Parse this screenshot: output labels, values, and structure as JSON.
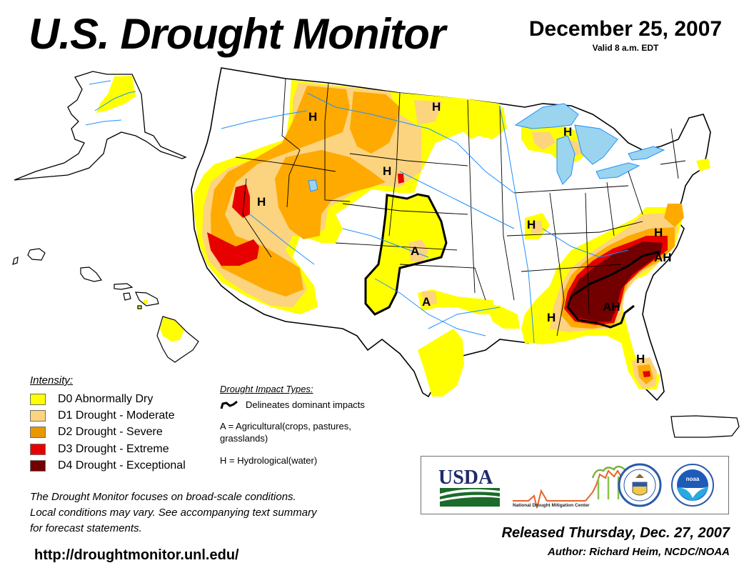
{
  "header": {
    "title": "U.S. Drought Monitor",
    "date": "December 25, 2007",
    "valid": "Valid 8 a.m. EDT"
  },
  "legend": {
    "intensity_heading": "Intensity:",
    "items": [
      {
        "code": "D0",
        "label": "D0 Abnormally Dry",
        "color": "#ffff00"
      },
      {
        "code": "D1",
        "label": "D1 Drought - Moderate",
        "color": "#fcd37f"
      },
      {
        "code": "D2",
        "label": "D2 Drought - Severe",
        "color": "#ffaa00"
      },
      {
        "code": "D3",
        "label": "D3 Drought - Extreme",
        "color": "#e60000"
      },
      {
        "code": "D4",
        "label": "D4 Drought - Exceptional",
        "color": "#730000"
      }
    ]
  },
  "impacts": {
    "heading": "Drought Impact Types:",
    "line_label": "Delineates dominant impacts",
    "agricultural": "A = Agricultural(crops, pastures,",
    "agricultural_cont": "grasslands)",
    "hydrological": "H = Hydrological(water)"
  },
  "map_labels": {
    "H": "H",
    "A": "A",
    "AH": "AH"
  },
  "note": {
    "line1": "The Drought Monitor focuses on broad-scale conditions.",
    "line2": "Local conditions may vary. See accompanying text summary",
    "line3": "for forecast statements."
  },
  "url": "http://droughtmonitor.unl.edu/",
  "logos": {
    "usda": "USDA",
    "ndmc": "National Drought Mitigation Center",
    "noaa": "noaa"
  },
  "footer": {
    "released": "Released Thursday, Dec. 27, 2007",
    "author": "Author: Richard Heim, NCDC/NOAA"
  },
  "colors": {
    "water": "#9bd4ef",
    "river": "#1e90ff",
    "county": "#a0a0a0",
    "border": "#000000"
  }
}
